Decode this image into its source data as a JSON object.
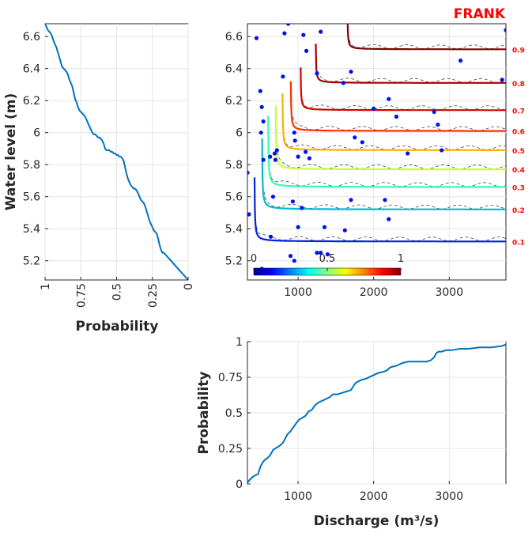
{
  "chart_data": [
    {
      "type": "line",
      "title": "FRANK",
      "ylabel": "Water level (m)",
      "xlabel": "Probability",
      "x_reversed": true,
      "xlim": [
        1,
        0
      ],
      "ylim": [
        5.08,
        6.68
      ],
      "xticks": [
        "1",
        "0.75",
        "0.5",
        "0.25",
        "0"
      ],
      "yticks": [
        "5.2",
        "5.4",
        "5.6",
        "5.8",
        "6",
        "6.2",
        "6.4",
        "6.6"
      ],
      "series": [
        {
          "x": [
            1,
            0.99,
            0.98,
            0.97,
            0.96,
            0.95,
            0.94,
            0.93,
            0.92,
            0.91,
            0.9,
            0.89,
            0.88,
            0.87,
            0.86,
            0.85,
            0.84,
            0.83,
            0.82,
            0.81,
            0.8,
            0.79,
            0.78,
            0.77,
            0.76,
            0.75,
            0.74,
            0.73,
            0.72,
            0.71,
            0.7,
            0.69,
            0.68,
            0.67,
            0.66,
            0.65,
            0.64,
            0.63,
            0.62,
            0.61,
            0.6,
            0.59,
            0.58,
            0.57,
            0.56,
            0.55,
            0.54,
            0.53,
            0.52,
            0.51,
            0.5,
            0.49,
            0.48,
            0.47,
            0.46,
            0.45,
            0.44,
            0.43,
            0.42,
            0.41,
            0.4,
            0.39,
            0.38,
            0.37,
            0.36,
            0.35,
            0.34,
            0.33,
            0.32,
            0.31,
            0.3,
            0.29,
            0.28,
            0.27,
            0.26,
            0.25,
            0.24,
            0.23,
            0.22,
            0.21,
            0.2,
            0.19,
            0.18,
            0.17,
            0.16,
            0.15,
            0.14,
            0.13,
            0.12,
            0.11,
            0.1,
            0.09,
            0.08,
            0.07,
            0.06,
            0.05,
            0.04,
            0.03,
            0.02,
            0.01,
            0
          ],
          "y": [
            6.68,
            6.66,
            6.64,
            6.63,
            6.62,
            6.6,
            6.57,
            6.55,
            6.53,
            6.5,
            6.47,
            6.44,
            6.41,
            6.4,
            6.39,
            6.38,
            6.36,
            6.33,
            6.31,
            6.29,
            6.25,
            6.21,
            6.19,
            6.16,
            6.14,
            6.13,
            6.12,
            6.11,
            6.1,
            6.08,
            6.06,
            6.04,
            6.02,
            6.0,
            5.99,
            5.99,
            5.98,
            5.97,
            5.97,
            5.96,
            5.95,
            5.93,
            5.9,
            5.89,
            5.89,
            5.89,
            5.88,
            5.88,
            5.87,
            5.87,
            5.86,
            5.86,
            5.85,
            5.85,
            5.84,
            5.82,
            5.78,
            5.74,
            5.71,
            5.69,
            5.67,
            5.66,
            5.65,
            5.65,
            5.64,
            5.62,
            5.6,
            5.58,
            5.57,
            5.56,
            5.54,
            5.51,
            5.48,
            5.45,
            5.43,
            5.41,
            5.39,
            5.38,
            5.37,
            5.34,
            5.3,
            5.27,
            5.25,
            5.25,
            5.24,
            5.23,
            5.22,
            5.21,
            5.2,
            5.19,
            5.18,
            5.17,
            5.16,
            5.15,
            5.14,
            5.13,
            5.12,
            5.11,
            5.1,
            5.09,
            5.08
          ]
        }
      ]
    },
    {
      "type": "contour",
      "xlim": [
        330,
        3750
      ],
      "ylim": [
        5.08,
        6.68
      ],
      "xticks": [
        "1000",
        "2000",
        "3000"
      ],
      "yticks": [
        "5.2",
        "5.4",
        "5.6",
        "5.8",
        "6",
        "6.2",
        "6.4",
        "6.6"
      ],
      "contour_levels": [
        {
          "label": "0.1",
          "value": 0.1,
          "color": "#0024d8",
          "x0": 420,
          "y0": 5.32,
          "k": 0.0018
        },
        {
          "label": "0.2",
          "value": 0.2,
          "color": "#00b8d8",
          "x0": 520,
          "y0": 5.52,
          "k": 0.002
        },
        {
          "label": "0.3",
          "value": 0.3,
          "color": "#2fffb0",
          "x0": 600,
          "y0": 5.66,
          "k": 0.002
        },
        {
          "label": "0.4",
          "value": 0.4,
          "color": "#c9ff30",
          "x0": 700,
          "y0": 5.77,
          "k": 0.0018
        },
        {
          "label": "0.5",
          "value": 0.5,
          "color": "#ffb000",
          "x0": 790,
          "y0": 5.89,
          "k": 0.0016
        },
        {
          "label": "0.6",
          "value": 0.6,
          "color": "#ff3000",
          "x0": 900,
          "y0": 6.01,
          "k": 0.0014
        },
        {
          "label": "0.7",
          "value": 0.7,
          "color": "#d80000",
          "x0": 1030,
          "y0": 6.14,
          "k": 0.0012
        },
        {
          "label": "0.8",
          "value": 0.8,
          "color": "#a50000",
          "x0": 1230,
          "y0": 6.31,
          "k": 0.0011
        },
        {
          "label": "0.9",
          "value": 0.9,
          "color": "#800000",
          "x0": 1650,
          "y0": 6.52,
          "k": 0.001
        }
      ],
      "colorbar": {
        "ticks": [
          "0",
          "0.5",
          "1"
        ]
      },
      "points": [
        [
          450,
          6.59
        ],
        [
          1300,
          6.63
        ],
        [
          3750,
          6.64
        ],
        [
          870,
          6.68
        ],
        [
          1070,
          6.61
        ],
        [
          1110,
          6.51
        ],
        [
          820,
          6.62
        ],
        [
          800,
          6.35
        ],
        [
          1250,
          6.37
        ],
        [
          1700,
          6.38
        ],
        [
          1600,
          6.31
        ],
        [
          3150,
          6.45
        ],
        [
          3700,
          6.33
        ],
        [
          2000,
          6.15
        ],
        [
          2200,
          6.21
        ],
        [
          2300,
          6.1
        ],
        [
          2800,
          6.13
        ],
        [
          2850,
          6.05
        ],
        [
          2900,
          5.89
        ],
        [
          2450,
          5.87
        ],
        [
          1750,
          5.97
        ],
        [
          1850,
          5.94
        ],
        [
          500,
          6.26
        ],
        [
          540,
          6.07
        ],
        [
          510,
          6.0
        ],
        [
          520,
          6.16
        ],
        [
          950,
          6.0
        ],
        [
          960,
          5.95
        ],
        [
          1000,
          5.85
        ],
        [
          1100,
          5.88
        ],
        [
          1150,
          5.84
        ],
        [
          690,
          5.87
        ],
        [
          720,
          5.89
        ],
        [
          700,
          5.83
        ],
        [
          630,
          5.85
        ],
        [
          540,
          5.83
        ],
        [
          330,
          5.75
        ],
        [
          350,
          5.49
        ],
        [
          670,
          5.6
        ],
        [
          930,
          5.57
        ],
        [
          1050,
          5.53
        ],
        [
          1700,
          5.58
        ],
        [
          2150,
          5.58
        ],
        [
          2200,
          5.46
        ],
        [
          1000,
          5.41
        ],
        [
          1350,
          5.41
        ],
        [
          1620,
          5.39
        ],
        [
          1250,
          5.25
        ],
        [
          1300,
          5.25
        ],
        [
          1390,
          5.24
        ],
        [
          900,
          5.23
        ],
        [
          950,
          5.2
        ],
        [
          640,
          5.35
        ],
        [
          520,
          5.15
        ],
        [
          600,
          5.07
        ]
      ]
    },
    {
      "type": "line",
      "xlabel": "Discharge (m³/s)",
      "ylabel": "Probability",
      "xlim": [
        330,
        3750
      ],
      "ylim": [
        0,
        1
      ],
      "xticks": [
        "1000",
        "2000",
        "3000"
      ],
      "yticks": [
        "0",
        "0.25",
        "0.5",
        "0.75",
        "1"
      ],
      "series": [
        {
          "x": [
            330,
            360,
            400,
            430,
            470,
            500,
            530,
            560,
            590,
            610,
            640,
            670,
            700,
            730,
            760,
            800,
            830,
            860,
            900,
            940,
            980,
            1010,
            1040,
            1070,
            1100,
            1140,
            1180,
            1220,
            1260,
            1300,
            1340,
            1380,
            1420,
            1460,
            1520,
            1580,
            1640,
            1700,
            1760,
            1830,
            1900,
            1980,
            2060,
            2140,
            2180,
            2220,
            2300,
            2380,
            2460,
            2540,
            2620,
            2700,
            2760,
            2800,
            2830,
            2860,
            2900,
            2960,
            3040,
            3140,
            3260,
            3400,
            3560,
            3700,
            3750
          ],
          "y": [
            0.01,
            0.03,
            0.05,
            0.06,
            0.07,
            0.12,
            0.15,
            0.17,
            0.18,
            0.19,
            0.21,
            0.24,
            0.25,
            0.26,
            0.27,
            0.29,
            0.32,
            0.35,
            0.37,
            0.4,
            0.43,
            0.45,
            0.46,
            0.47,
            0.48,
            0.51,
            0.52,
            0.55,
            0.57,
            0.58,
            0.59,
            0.6,
            0.61,
            0.63,
            0.63,
            0.64,
            0.65,
            0.66,
            0.71,
            0.73,
            0.74,
            0.76,
            0.78,
            0.79,
            0.8,
            0.82,
            0.83,
            0.85,
            0.86,
            0.86,
            0.86,
            0.86,
            0.87,
            0.89,
            0.92,
            0.93,
            0.93,
            0.94,
            0.94,
            0.95,
            0.95,
            0.96,
            0.96,
            0.97,
            0.98
          ]
        }
      ]
    }
  ]
}
